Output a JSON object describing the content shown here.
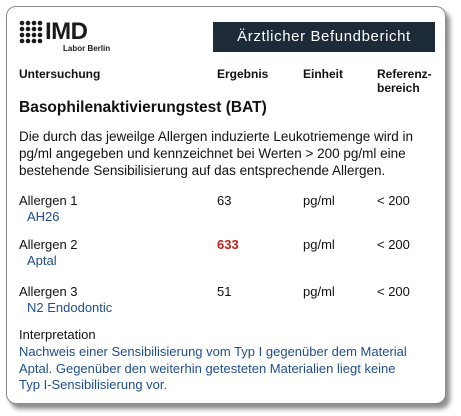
{
  "header": {
    "brand": "IMD",
    "sub_brand": "Labor Berlin",
    "title": "Ärztlicher Befundbericht"
  },
  "table": {
    "columns": [
      [
        "Untersuchung"
      ],
      [
        "Ergebnis"
      ],
      [
        "Einheit"
      ],
      [
        "Referenz-",
        "bereich"
      ]
    ],
    "test_title": "Basophilenaktivierungstest (BAT)",
    "description": [
      "Die durch das jeweilge Allergen induzierte Leukotriemenge wird in",
      "pg/ml angegeben und kennzeichnet bei Werten > 200 pg/ml eine",
      "bestehende Sensibilisierung auf das entsprechende Allergen."
    ],
    "rows": [
      {
        "name": "Allergen 1",
        "substance": "AH26",
        "result": "63",
        "unit": "pg/ml",
        "reference": "< 200",
        "elevated": false
      },
      {
        "name": "Allergen 2",
        "substance": "Aptal",
        "result": "633",
        "unit": "pg/ml",
        "reference": "< 200",
        "elevated": true
      },
      {
        "name": "Allergen 3",
        "substance": "N2 Endodontic",
        "result": "51",
        "unit": "pg/ml",
        "reference": "< 200",
        "elevated": false
      }
    ]
  },
  "interpretation": {
    "heading": "Interpretation",
    "text": [
      "Nachweis einer Sensibilisierung vom Typ I gegenüber dem Material",
      "Aptal. Gegenüber den weiterhin getesteten Materialien liegt keine",
      "Typ I-Sensibilisierung vor."
    ]
  }
}
